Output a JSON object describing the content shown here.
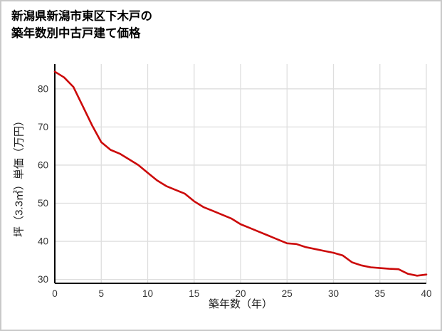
{
  "page": {
    "title_line1": "新潟県新潟市東区下木戸の",
    "title_line2": "築年数別中古戸建て価格"
  },
  "chart_data": {
    "type": "line",
    "title": "新潟県新潟市東区下木戸の築年数別中古戸建て価格",
    "xlabel": "築年数（年）",
    "ylabel": "坪（3.3㎡）単価（万円）",
    "xlim": [
      0,
      40
    ],
    "ylim": [
      29,
      86.5
    ],
    "xticks": [
      0,
      5,
      10,
      15,
      20,
      25,
      30,
      35,
      40
    ],
    "yticks": [
      30,
      40,
      50,
      60,
      70,
      80
    ],
    "grid": true,
    "legend": false,
    "colors": {
      "line": "#cc0a0a",
      "grid": "#dedede",
      "axis": "#000000",
      "tick_text": "#333333"
    },
    "series": [
      {
        "name": "坪単価（万円）",
        "x": [
          0,
          1,
          2,
          3,
          4,
          5,
          6,
          7,
          8,
          9,
          10,
          11,
          12,
          13,
          14,
          15,
          16,
          17,
          18,
          19,
          20,
          21,
          22,
          23,
          24,
          25,
          26,
          27,
          28,
          29,
          30,
          31,
          32,
          33,
          34,
          35,
          36,
          37,
          38,
          39,
          40
        ],
        "y": [
          84.5,
          83,
          80.5,
          75.5,
          70.5,
          66,
          64,
          63,
          61.5,
          60,
          58,
          56,
          54.5,
          53.5,
          52.5,
          50.5,
          49,
          48,
          47,
          46,
          44.5,
          43.5,
          42.5,
          41.5,
          40.5,
          39.5,
          39.3,
          38.5,
          38,
          37.5,
          37,
          36.3,
          34.5,
          33.7,
          33.2,
          33,
          32.8,
          32.7,
          31.5,
          31,
          31.3
        ]
      }
    ]
  }
}
